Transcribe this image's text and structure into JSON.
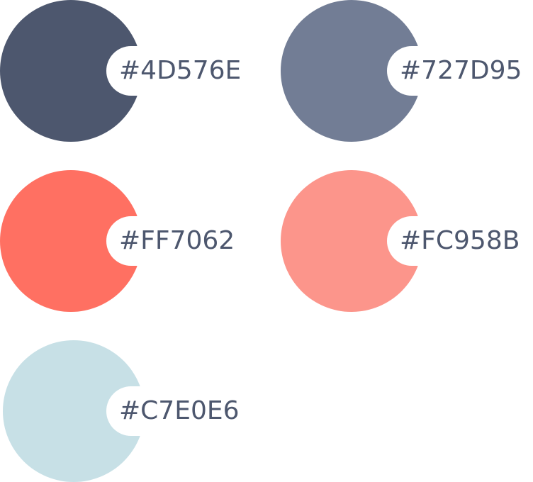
{
  "swatches": [
    {
      "hex": "#4D576E",
      "label": "#4D576E"
    },
    {
      "hex": "#727D95",
      "label": "#727D95"
    },
    {
      "hex": "#FF7062",
      "label": "#FF7062"
    },
    {
      "hex": "#FC958B",
      "label": "#FC958B"
    },
    {
      "hex": "#C7E0E6",
      "label": "#C7E0E6"
    }
  ],
  "text_color": "#4D576E"
}
